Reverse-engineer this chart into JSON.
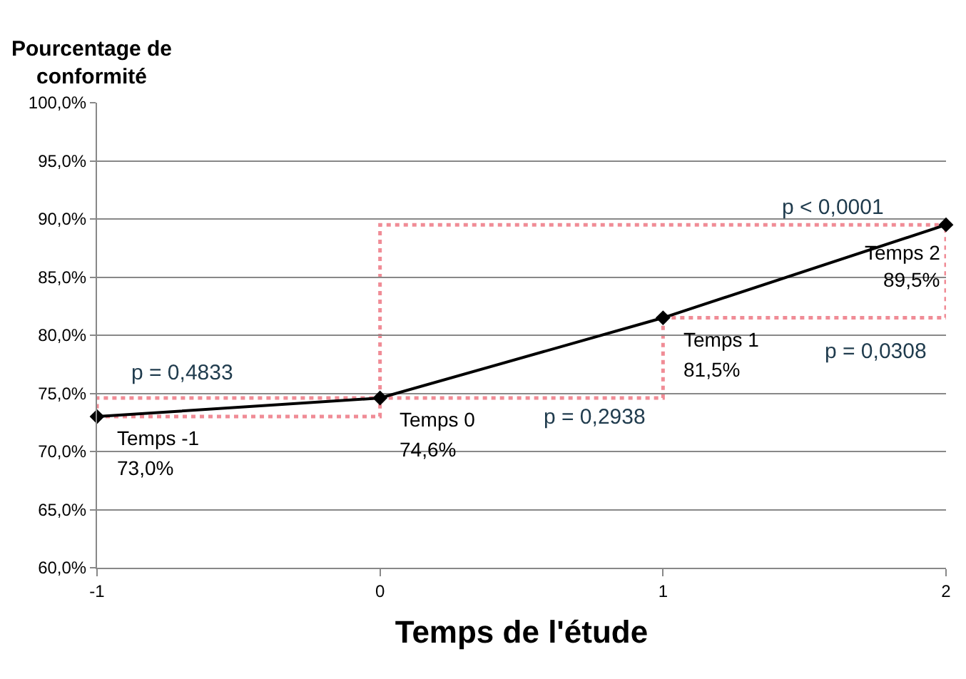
{
  "chart_data": {
    "type": "line",
    "xlabel": "Temps de l'étude",
    "ylabel": "Pourcentage de conformité",
    "x": [
      -1,
      0,
      1,
      2
    ],
    "series": [
      {
        "color": "#000000",
        "values": [
          73.0,
          74.6,
          81.5,
          89.5
        ],
        "value_labels": [
          "73,0%",
          "74,6%",
          "81,5%",
          "89,5%"
        ]
      }
    ],
    "xlim": [
      -1,
      2
    ],
    "xticks": [
      -1,
      0,
      1,
      2
    ],
    "ylim": [
      60,
      100
    ],
    "yticks": [
      {
        "value": 60,
        "label": "60,0%"
      },
      {
        "value": 65,
        "label": "65,0%"
      },
      {
        "value": 70,
        "label": "70,0%"
      },
      {
        "value": 75,
        "label": "75,0%"
      },
      {
        "value": 80,
        "label": "80,0%"
      },
      {
        "value": 85,
        "label": "85,0%"
      },
      {
        "value": 90,
        "label": "90,0%"
      },
      {
        "value": 95,
        "label": "95,0%"
      },
      {
        "value": 100,
        "label": "100,0%"
      }
    ],
    "grid": "y",
    "marker": "diamond",
    "line_style": "solid",
    "legend": false,
    "annotations": [
      {
        "text": "Temps -1",
        "x": -1,
        "y": 73.0
      },
      {
        "text": "Temps 0",
        "x": 0,
        "y": 74.6
      },
      {
        "text": "Temps 1",
        "x": 1,
        "y": 81.5
      },
      {
        "text": "Temps 2",
        "x": 2,
        "y": 89.5
      },
      "p = 0,4833",
      "p = 0,2938",
      "p < 0,0001",
      "p = 0,0308"
    ]
  }
}
